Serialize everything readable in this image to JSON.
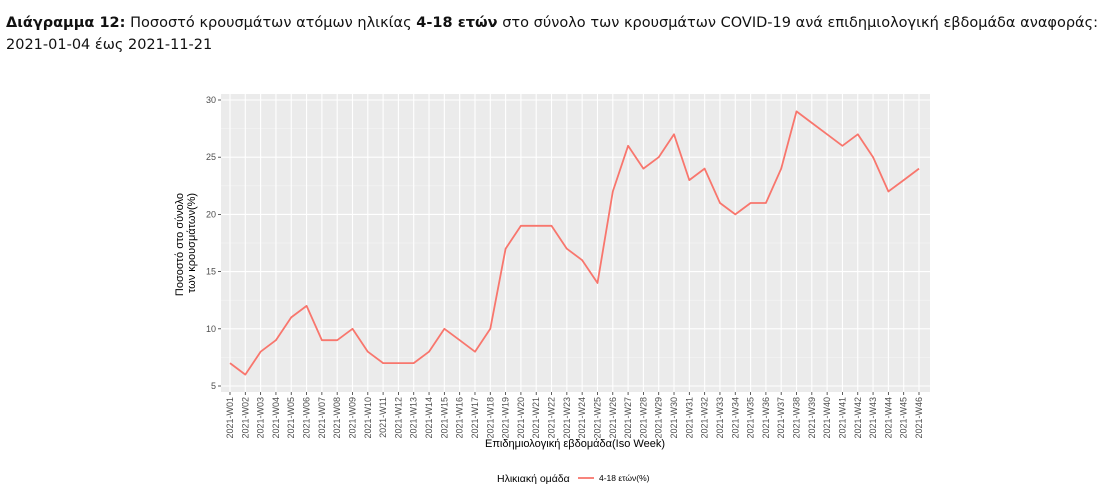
{
  "caption": {
    "label": "Διάγραμμα 12",
    "text_before": "Ποσοστό κρουσμάτων ατόμων ηλικίας ",
    "age_bold": "4-18 ετών",
    "text_after": " στο σύνολο των κρουσμάτων COVID-19 ανά επιδημιολογική εβδομάδα αναφοράς: 2021-01-04 έως 2021-11-21"
  },
  "chart_data": {
    "type": "line",
    "title": "",
    "xlabel": "Επιδημιολογική εβδομάδα(Iso Week)",
    "ylabel_lines": [
      "Ποσοστό στο σύνολο",
      "των κρουσμάτων(%)"
    ],
    "ylim": [
      5,
      30
    ],
    "yticks": [
      5,
      10,
      15,
      20,
      25,
      30
    ],
    "grid": true,
    "legend": {
      "title": "Ηλικιακή ομάδα",
      "position": "bottom"
    },
    "categories": [
      "2021-W01",
      "2021-W02",
      "2021-W03",
      "2021-W04",
      "2021-W05",
      "2021-W06",
      "2021-W07",
      "2021-W08",
      "2021-W09",
      "2021-W10",
      "2021-W11",
      "2021-W12",
      "2021-W13",
      "2021-W14",
      "2021-W15",
      "2021-W16",
      "2021-W17",
      "2021-W18",
      "2021-W19",
      "2021-W20",
      "2021-W21",
      "2021-W22",
      "2021-W23",
      "2021-W24",
      "2021-W25",
      "2021-W26",
      "2021-W27",
      "2021-W28",
      "2021-W29",
      "2021-W30",
      "2021-W31",
      "2021-W32",
      "2021-W33",
      "2021-W34",
      "2021-W35",
      "2021-W36",
      "2021-W37",
      "2021-W38",
      "2021-W39",
      "2021-W40",
      "2021-W41",
      "2021-W42",
      "2021-W43",
      "2021-W44",
      "2021-W45",
      "2021-W46"
    ],
    "series": [
      {
        "name": "4-18 ετών(%)",
        "color": "#f8766d",
        "values": [
          7,
          6,
          8,
          9,
          11,
          12,
          9,
          9,
          10,
          8,
          7,
          7,
          7,
          8,
          10,
          9,
          8,
          10,
          17,
          19,
          19,
          19,
          17,
          16,
          14,
          22,
          26,
          24,
          25,
          27,
          23,
          24,
          21,
          20,
          21,
          21,
          24,
          29,
          28,
          27,
          26,
          27,
          25,
          22,
          23,
          24
        ]
      }
    ]
  }
}
